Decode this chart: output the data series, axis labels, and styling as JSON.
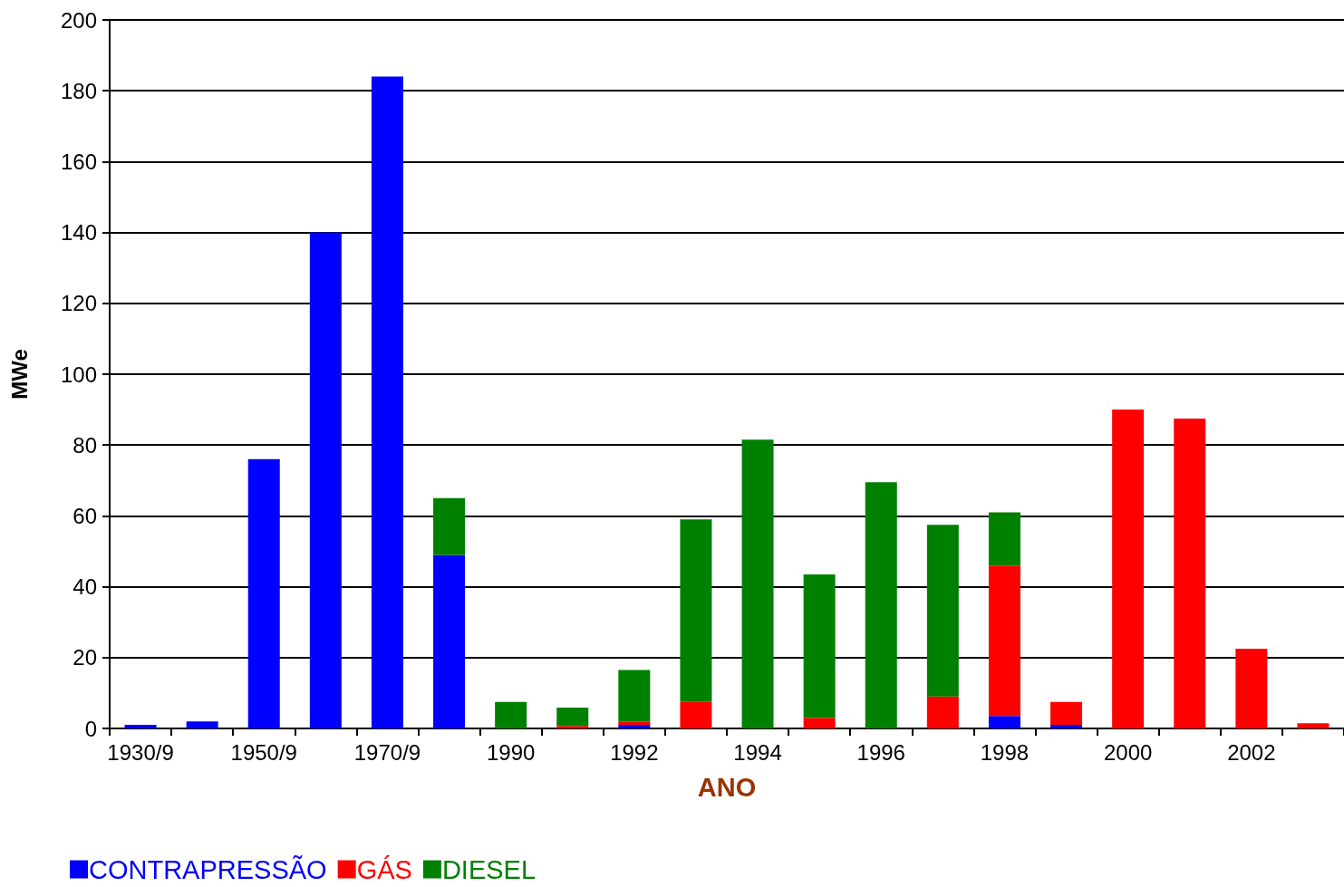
{
  "chart_data": {
    "type": "bar",
    "stacked": true,
    "xlabel": "ANO",
    "ylabel": "MWe",
    "categories": [
      "1930/9",
      null,
      "1950/9",
      null,
      "1970/9",
      null,
      "1990",
      null,
      "1992",
      null,
      "1994",
      null,
      "1996",
      null,
      "1998",
      null,
      "2000",
      null,
      "2002",
      null
    ],
    "series": [
      {
        "name": "CONTRAPRESSÃO",
        "color": "#0000ff",
        "values": [
          1,
          2,
          76,
          140,
          184,
          49,
          0,
          0,
          1,
          0,
          0,
          0,
          0,
          0,
          3.5,
          1,
          0,
          0,
          0,
          0
        ]
      },
      {
        "name": "GÁS",
        "color": "#ff0000",
        "values": [
          0,
          0,
          0,
          0,
          0,
          0,
          0,
          0.7,
          1,
          7.5,
          0,
          3,
          0,
          9,
          42.5,
          6.5,
          90,
          87.5,
          22.5,
          1.5
        ]
      },
      {
        "name": "DIESEL",
        "color": "#008000",
        "values": [
          0,
          0,
          0,
          0,
          0,
          16,
          7.5,
          5.2,
          14.5,
          51.5,
          81.5,
          40.5,
          69.5,
          48.5,
          15,
          0,
          0,
          0,
          0,
          0
        ]
      }
    ],
    "ylim": [
      0,
      200
    ],
    "yticks": [
      0,
      20,
      40,
      60,
      80,
      100,
      120,
      140,
      160,
      180,
      200
    ],
    "grid": "y",
    "legend": "bottom left"
  }
}
